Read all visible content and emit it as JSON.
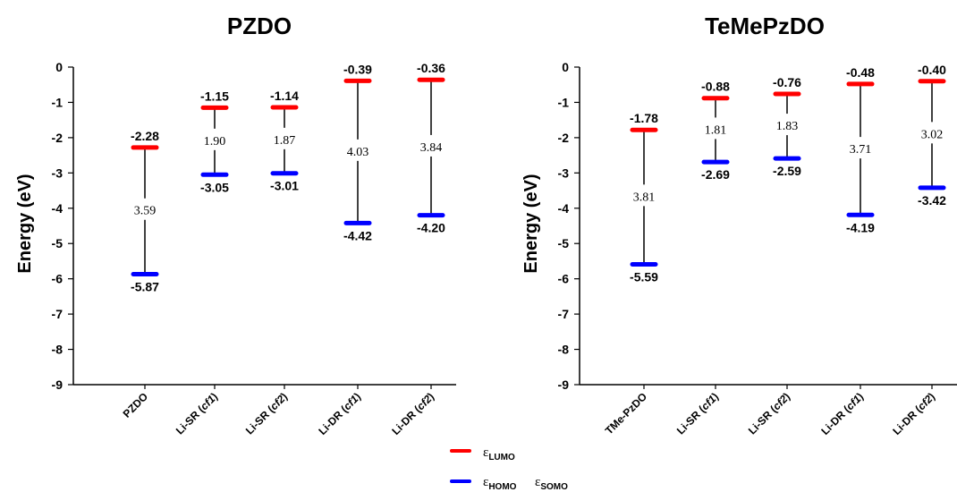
{
  "colors": {
    "lumo": "#ff0000",
    "homo": "#0000ff",
    "axis": "#000000"
  },
  "chart_data": [
    {
      "type": "range",
      "title": "PZDO",
      "ylabel": "Energy (eV)",
      "ylim": [
        -9,
        0
      ],
      "yticks": [
        "0",
        "-1",
        "-2",
        "-3",
        "-4",
        "-5",
        "-6",
        "-7",
        "-8",
        "-9"
      ],
      "categories": [
        {
          "main": "PZDO",
          "cf": ""
        },
        {
          "main": "Li-SR",
          "cf": "cf1"
        },
        {
          "main": "Li-SR",
          "cf": "cf2"
        },
        {
          "main": "Li-DR",
          "cf": "cf1"
        },
        {
          "main": "Li-DR",
          "cf": "cf2"
        }
      ],
      "lumo": [
        -2.28,
        -1.15,
        -1.14,
        -0.39,
        -0.36
      ],
      "homo": [
        -5.87,
        -3.05,
        -3.01,
        -4.42,
        -4.2
      ],
      "lumo_labels": [
        "-2.28",
        "-1.15",
        "-1.14",
        "-0.39",
        "-0.36"
      ],
      "homo_labels": [
        "-5.87",
        "-3.05",
        "-3.01",
        "-4.42",
        "-4.20"
      ],
      "gap_labels": [
        "3.59",
        "1.90",
        "1.87",
        "4.03",
        "3.84"
      ]
    },
    {
      "type": "range",
      "title": "TeMePzDO",
      "ylabel": "Energy (eV)",
      "ylim": [
        -9,
        0
      ],
      "yticks": [
        "0",
        "-1",
        "-2",
        "-3",
        "-4",
        "-5",
        "-6",
        "-7",
        "-8",
        "-9"
      ],
      "categories": [
        {
          "main": "TMe-PzDO",
          "cf": ""
        },
        {
          "main": "Li-SR",
          "cf": "cf1"
        },
        {
          "main": "Li-SR",
          "cf": "cf2"
        },
        {
          "main": "Li-DR",
          "cf": "cf1"
        },
        {
          "main": "Li-DR",
          "cf": "cf2"
        }
      ],
      "lumo": [
        -1.78,
        -0.88,
        -0.76,
        -0.48,
        -0.4
      ],
      "homo": [
        -5.59,
        -2.69,
        -2.59,
        -4.19,
        -3.42
      ],
      "lumo_labels": [
        "-1.78",
        "-0.88",
        "-0.76",
        "-0.48",
        "-0.40"
      ],
      "homo_labels": [
        "-5.59",
        "-2.69",
        "-2.59",
        "-4.19",
        "-3.42"
      ],
      "gap_labels": [
        "3.81",
        "1.81",
        "1.83",
        "3.71",
        "3.02"
      ]
    }
  ],
  "legend": {
    "lumo": {
      "symbol": "ε",
      "sub": "LUMO"
    },
    "homo": {
      "symbol": "ε",
      "sub": "HOMO"
    },
    "somo": {
      "symbol": "ε",
      "sub": "SOMO"
    }
  }
}
